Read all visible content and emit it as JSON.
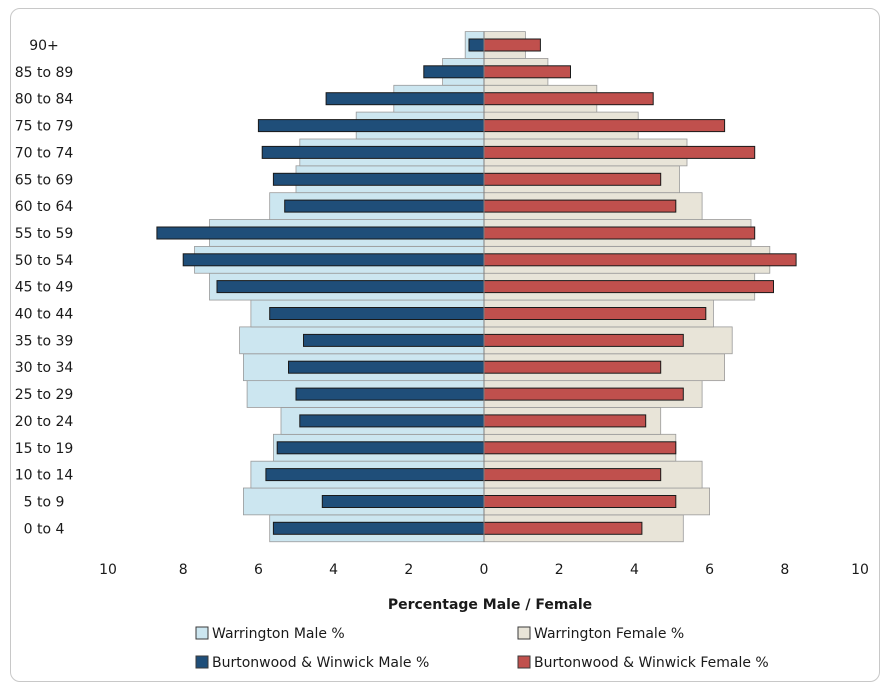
{
  "chart_data": {
    "type": "bar",
    "orientation": "horizontal",
    "layout": "population-pyramid",
    "categories": [
      "0 to 4",
      "5 to 9",
      "10 to 14",
      "15 to 19",
      "20 to 24",
      "25 to 29",
      "30 to 34",
      "35 to 39",
      "40 to 44",
      "45 to 49",
      "50 to 54",
      "55 to 59",
      "60 to 64",
      "65 to 69",
      "70 to 74",
      "75 to 79",
      "80 to 84",
      "85 to 89",
      "90+"
    ],
    "series": [
      {
        "name": "Warrington Male %",
        "color": "#cce6f0",
        "side": "left",
        "style": "wide",
        "values": [
          5.7,
          6.4,
          6.2,
          5.6,
          5.4,
          6.3,
          6.4,
          6.5,
          6.2,
          7.3,
          7.7,
          7.3,
          5.7,
          5.0,
          4.9,
          3.4,
          2.4,
          1.1,
          0.5
        ]
      },
      {
        "name": "Warrington Female %",
        "color": "#e8e4d8",
        "side": "right",
        "style": "wide",
        "values": [
          5.3,
          6.0,
          5.8,
          5.1,
          4.7,
          5.8,
          6.4,
          6.6,
          6.1,
          7.2,
          7.6,
          7.1,
          5.8,
          5.2,
          5.4,
          4.1,
          3.0,
          1.7,
          1.1
        ]
      },
      {
        "name": "Burtonwood & Winwick Male %",
        "color": "#1f4e79",
        "side": "left",
        "style": "narrow",
        "values": [
          5.6,
          4.3,
          5.8,
          5.5,
          4.9,
          5.0,
          5.2,
          4.8,
          5.7,
          7.1,
          8.0,
          8.7,
          5.3,
          5.6,
          5.9,
          6.0,
          4.2,
          1.6,
          0.4
        ]
      },
      {
        "name": "Burtonwood & Winwick Female %",
        "color": "#c0504d",
        "side": "right",
        "style": "narrow",
        "values": [
          4.2,
          5.1,
          4.7,
          5.1,
          4.3,
          5.3,
          4.7,
          5.3,
          5.9,
          7.7,
          8.3,
          7.2,
          5.1,
          4.7,
          7.2,
          6.4,
          4.5,
          2.3,
          1.5
        ]
      }
    ],
    "xlim": [
      -10,
      10
    ],
    "x_ticks": [
      -10,
      -8,
      -6,
      -4,
      -2,
      0,
      2,
      4,
      6,
      8,
      10
    ],
    "x_tick_labels": [
      "10",
      "8",
      "6",
      "4",
      "2",
      "0",
      "2",
      "4",
      "6",
      "8",
      "10"
    ],
    "xlabel": "Percentage Male / Female",
    "ylabel": "",
    "title": "",
    "grid": false,
    "legend": {
      "placement": "bottom",
      "entries": [
        "Warrington Male %",
        "Warrington Female %",
        "Burtonwood & Winwick Male %",
        "Burtonwood & Winwick Female %"
      ]
    }
  }
}
